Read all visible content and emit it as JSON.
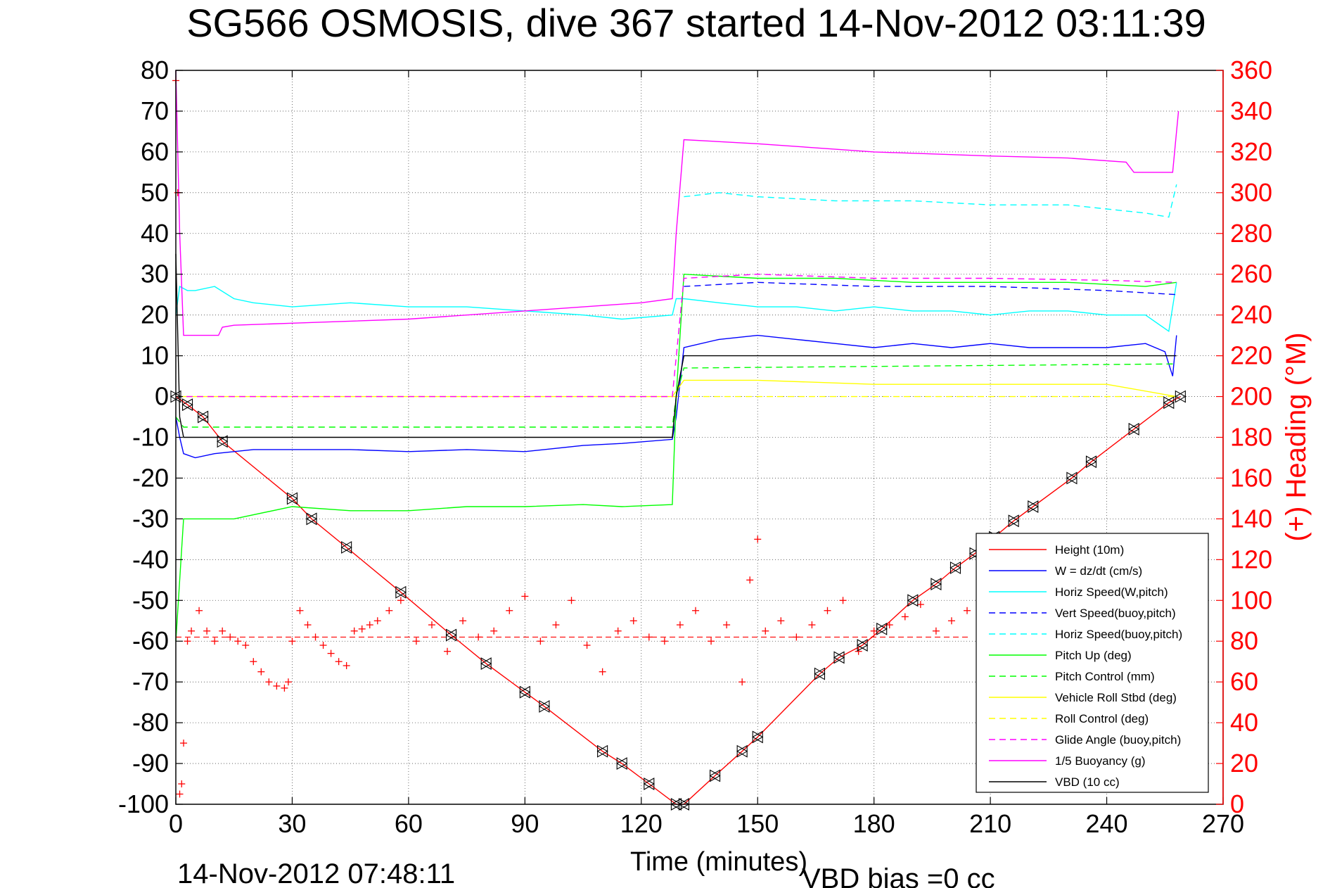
{
  "title": "SG566 OSMOSIS, dive 367 started 14-Nov-2012 03:11:39",
  "footer": {
    "timestamp": "14-Nov-2012 07:48:11",
    "vbd_bias": "VBD bias =0 cc"
  },
  "colors": {
    "height": "#ff0000",
    "w": "#0000ff",
    "horiz_speed": "#00ffff",
    "pitch": "#00ff00",
    "roll": "#ffff00",
    "glide": "#ff00ff",
    "buoyancy": "#ff00ff",
    "vbd": "#000000",
    "heading": "#ff0000"
  },
  "chart_data": {
    "type": "line",
    "title": "SG566 OSMOSIS, dive 367 started 14-Nov-2012 03:11:39",
    "xlabel": "Time (minutes)",
    "ylabel": "",
    "y2label": "(+) Heading (°M)",
    "xlim": [
      0,
      270
    ],
    "ylim": [
      -100,
      80
    ],
    "y2lim": [
      0,
      360
    ],
    "xticks": [
      0,
      30,
      60,
      90,
      120,
      150,
      180,
      210,
      240,
      270
    ],
    "yticks": [
      80,
      70,
      60,
      50,
      40,
      30,
      20,
      10,
      0,
      -10,
      -20,
      -30,
      -40,
      -50,
      -60,
      -70,
      -80,
      -90,
      -100
    ],
    "y2ticks": [
      360,
      340,
      320,
      300,
      280,
      260,
      240,
      220,
      200,
      180,
      160,
      140,
      120,
      100,
      80,
      60,
      40,
      20,
      0
    ],
    "grid": true,
    "legend_position": "bottom-right",
    "series": [
      {
        "name": "Height (10m)",
        "style": "solid",
        "color_key": "height",
        "x": [
          0,
          3,
          7,
          12,
          30,
          35,
          44,
          58,
          71,
          80,
          90,
          95,
          110,
          115,
          122,
          129,
          131,
          139,
          146,
          150,
          166,
          171,
          177,
          182,
          190,
          196,
          201,
          206,
          211,
          216,
          221,
          231,
          236,
          247,
          256,
          259
        ],
        "y": [
          0,
          -2,
          -5,
          -11,
          -25,
          -30,
          -37,
          -48,
          -58.5,
          -65.5,
          -72.5,
          -76,
          -87,
          -90,
          -95,
          -100,
          -100,
          -93,
          -87,
          -83.5,
          -68,
          -64,
          -61,
          -57,
          -50,
          -46,
          -42,
          -38.5,
          -34.5,
          -30.5,
          -27,
          -20,
          -16,
          -8,
          -1.5,
          0
        ]
      },
      {
        "name": "W = dz/dt (cm/s)",
        "style": "solid",
        "color_key": "w",
        "x": [
          0,
          1,
          2,
          5,
          10,
          20,
          30,
          45,
          60,
          75,
          90,
          105,
          115,
          128,
          129,
          131,
          140,
          150,
          160,
          170,
          180,
          190,
          200,
          210,
          220,
          230,
          240,
          250,
          255,
          257,
          258
        ],
        "y": [
          -5,
          -10,
          -14,
          -15,
          -14,
          -13,
          -13,
          -13,
          -13.5,
          -13,
          -13.5,
          -12,
          -11.5,
          -10.5,
          -5,
          12,
          14,
          15,
          14,
          13,
          12,
          13,
          12,
          13,
          12,
          12,
          12,
          13,
          11,
          5,
          15
        ]
      },
      {
        "name": "Horiz Speed(W,pitch)",
        "style": "solid",
        "color_key": "horiz_speed",
        "x": [
          0,
          1,
          3,
          5,
          10,
          15,
          20,
          30,
          45,
          60,
          75,
          90,
          105,
          115,
          128,
          129,
          131,
          140,
          150,
          160,
          170,
          180,
          190,
          200,
          210,
          220,
          230,
          240,
          250,
          256,
          258
        ],
        "y": [
          20,
          27,
          26,
          26,
          27,
          24,
          23,
          22,
          23,
          22,
          22,
          21,
          20,
          19,
          20,
          24,
          24,
          23,
          22,
          22,
          21,
          22,
          21,
          21,
          20,
          21,
          21,
          20,
          20,
          16,
          28
        ]
      },
      {
        "name": "Vert Speed(buoy,pitch)",
        "style": "dashed",
        "color_key": "w",
        "x": [
          131,
          150,
          180,
          210,
          240,
          258
        ],
        "y": [
          27,
          28,
          27,
          27,
          26,
          25
        ]
      },
      {
        "name": "Horiz Speed(buoy,pitch)",
        "style": "dashed",
        "color_key": "horiz_speed",
        "x": [
          131,
          140,
          150,
          170,
          190,
          210,
          230,
          250,
          256,
          258
        ],
        "y": [
          49,
          50,
          49,
          48,
          48,
          47,
          47,
          45,
          44,
          52
        ]
      },
      {
        "name": "Pitch Up (deg)",
        "style": "solid",
        "color_key": "pitch",
        "x": [
          0,
          2,
          5,
          15,
          30,
          45,
          60,
          75,
          90,
          105,
          115,
          128,
          129,
          131,
          150,
          170,
          190,
          210,
          230,
          250,
          258
        ],
        "y": [
          -60,
          -30,
          -30,
          -30,
          -27,
          -28,
          -28,
          -27,
          -27,
          -26.5,
          -27,
          -26.5,
          0,
          30,
          29,
          29,
          28,
          28,
          28,
          27,
          28
        ]
      },
      {
        "name": "Pitch Control (mm)",
        "style": "dashed",
        "color_key": "pitch",
        "x": [
          0,
          2,
          128,
          129,
          131,
          258
        ],
        "y": [
          -5,
          -7.5,
          -7.5,
          0,
          7,
          8
        ]
      },
      {
        "name": "Vehicle Roll Stbd (deg)",
        "style": "solid",
        "color_key": "roll",
        "x": [
          0,
          30,
          60,
          90,
          120,
          128,
          131,
          150,
          180,
          210,
          240,
          258
        ],
        "y": [
          0,
          0,
          0,
          0,
          0,
          0,
          4,
          4,
          3,
          3,
          3,
          0
        ]
      },
      {
        "name": "Roll Control (deg)",
        "style": "dashed",
        "color_key": "roll",
        "x": [
          0,
          128,
          131,
          258
        ],
        "y": [
          0,
          0,
          0,
          0
        ]
      },
      {
        "name": "Glide Angle (buoy,pitch)",
        "style": "dashed",
        "color_key": "glide",
        "x": [
          0,
          128,
          131,
          150,
          180,
          210,
          240,
          258
        ],
        "y": [
          0,
          0,
          29,
          30,
          29,
          29,
          28.5,
          28
        ]
      },
      {
        "name": "1/5 Buoyancy (g)",
        "style": "solid",
        "color_key": "buoyancy",
        "x": [
          0,
          1,
          2,
          11,
          12,
          15,
          30,
          60,
          90,
          120,
          128,
          129,
          131,
          150,
          180,
          210,
          230,
          245,
          247,
          257,
          258,
          258.5
        ],
        "y": [
          80,
          40,
          15,
          15,
          17,
          17.5,
          18,
          19,
          21,
          23,
          24,
          40,
          63,
          62,
          60,
          59,
          58.5,
          57.5,
          55,
          55,
          65,
          70
        ]
      },
      {
        "name": "VBD (10 cc)",
        "style": "solid",
        "color_key": "vbd",
        "x": [
          0,
          1,
          2,
          3,
          128,
          129,
          131,
          258
        ],
        "y": [
          35,
          -5,
          -10,
          -10,
          -10,
          0,
          10,
          10
        ]
      }
    ],
    "heading": {
      "name": "(+) Heading (°M)",
      "marker": "plus",
      "color_key": "heading",
      "reference_line": 82,
      "x": [
        0,
        0.5,
        1,
        1.5,
        2,
        3,
        4,
        6,
        8,
        10,
        12,
        14,
        16,
        18,
        20,
        22,
        24,
        26,
        28,
        29,
        30,
        32,
        34,
        36,
        38,
        40,
        42,
        44,
        46,
        48,
        50,
        52,
        55,
        58,
        62,
        66,
        70,
        74,
        78,
        82,
        86,
        90,
        94,
        98,
        102,
        106,
        110,
        114,
        118,
        122,
        126,
        130,
        134,
        138,
        142,
        146,
        148,
        150,
        152,
        156,
        160,
        164,
        168,
        172,
        176,
        180,
        184,
        188,
        192,
        196,
        200,
        204,
        208,
        212
      ],
      "y": [
        355,
        300,
        5,
        10,
        30,
        80,
        85,
        95,
        85,
        80,
        85,
        82,
        80,
        78,
        70,
        65,
        60,
        58,
        57,
        60,
        80,
        95,
        88,
        82,
        78,
        74,
        70,
        68,
        85,
        86,
        88,
        90,
        95,
        100,
        80,
        88,
        75,
        90,
        82,
        85,
        95,
        102,
        80,
        88,
        100,
        78,
        65,
        85,
        90,
        82,
        80,
        88,
        95,
        80,
        88,
        60,
        110,
        130,
        85,
        90,
        82,
        88,
        95,
        100,
        75,
        85,
        88,
        92,
        98,
        85,
        90,
        95,
        80,
        88
      ]
    }
  },
  "legend": [
    {
      "label": "Height (10m)",
      "color_key": "height",
      "style": "solid"
    },
    {
      "label": "W = dz/dt (cm/s)",
      "color_key": "w",
      "style": "solid"
    },
    {
      "label": "Horiz Speed(W,pitch)",
      "color_key": "horiz_speed",
      "style": "solid"
    },
    {
      "label": "Vert Speed(buoy,pitch)",
      "color_key": "w",
      "style": "dashed"
    },
    {
      "label": "Horiz Speed(buoy,pitch)",
      "color_key": "horiz_speed",
      "style": "dashed"
    },
    {
      "label": "Pitch Up (deg)",
      "color_key": "pitch",
      "style": "solid"
    },
    {
      "label": "Pitch Control (mm)",
      "color_key": "pitch",
      "style": "dashed"
    },
    {
      "label": "Vehicle Roll Stbd (deg)",
      "color_key": "roll",
      "style": "solid"
    },
    {
      "label": "Roll Control (deg)",
      "color_key": "roll",
      "style": "dashed"
    },
    {
      "label": "Glide Angle (buoy,pitch)",
      "color_key": "glide",
      "style": "dashed"
    },
    {
      "label": "1/5 Buoyancy (g)",
      "color_key": "buoyancy",
      "style": "solid"
    },
    {
      "label": "VBD (10 cc)",
      "color_key": "vbd",
      "style": "solid"
    }
  ]
}
